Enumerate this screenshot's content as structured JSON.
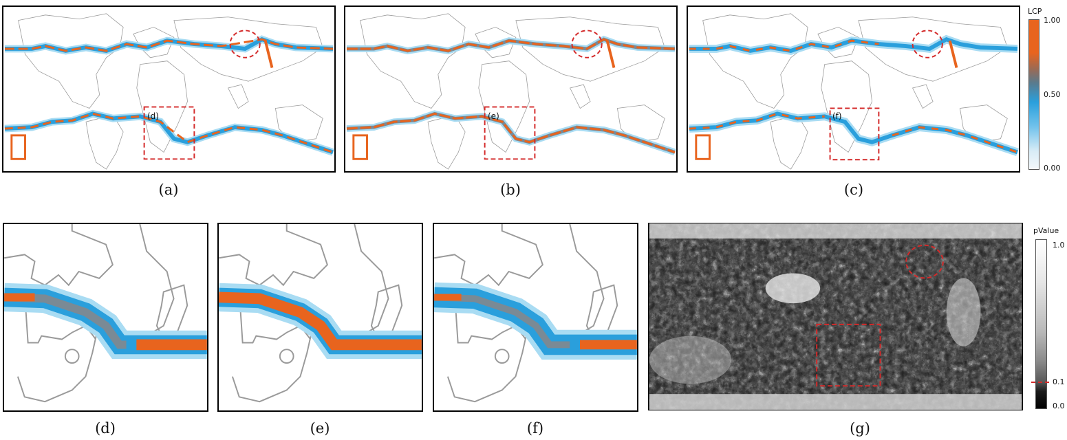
{
  "top_panels": [
    {
      "caption": "(a)",
      "inset_label": "(d)"
    },
    {
      "caption": "(b)",
      "inset_label": "(e)"
    },
    {
      "caption": "(c)",
      "inset_label": "(f)"
    }
  ],
  "bottom_panels": [
    {
      "caption": "(d)"
    },
    {
      "caption": "(e)"
    },
    {
      "caption": "(f)"
    },
    {
      "caption": "(g)"
    }
  ],
  "lcp_colorbar": {
    "title": "LCP",
    "ticks": [
      "1.00",
      "0.50",
      "0.00"
    ],
    "colors": {
      "high": "#e8641e",
      "mid": "#2a9fdc",
      "low": "#f4f8fb"
    }
  },
  "pvalue_colorbar": {
    "title": "pValue",
    "ticks": [
      "1.0",
      "0.1",
      "0.0"
    ],
    "marker_color": "#d42a2a"
  },
  "colors": {
    "orange": "#e8641e",
    "blue": "#2a9fdc",
    "light_blue": "#a9dcf3",
    "border_grey": "#9a9a9a",
    "highlight_red": "#d42a2a"
  }
}
